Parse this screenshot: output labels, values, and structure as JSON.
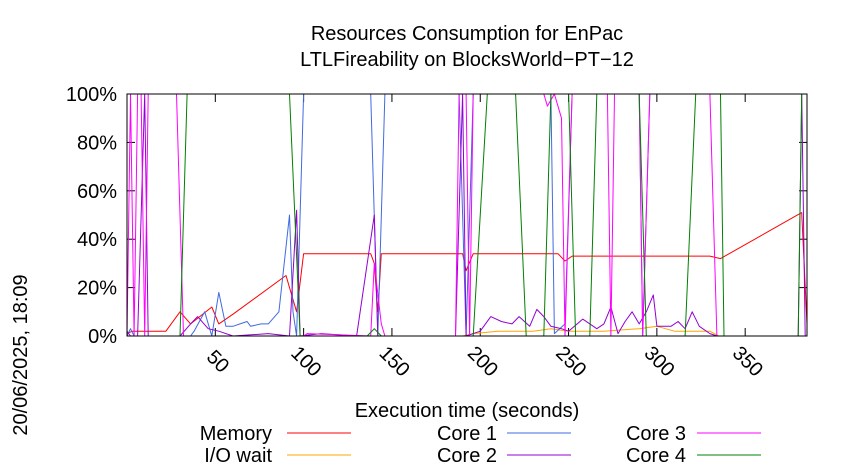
{
  "chart_data": {
    "type": "line",
    "title": "Resources Consumption for EnPac",
    "subtitle": "LTLFireability on BlocksWorld−PT−12",
    "xlabel": "Execution time (seconds)",
    "ylabel": "",
    "side_label": "20/06/2025, 18:09",
    "xlim": [
      0,
      385
    ],
    "ylim": [
      0,
      100
    ],
    "x_ticks": [
      50,
      100,
      150,
      200,
      250,
      300,
      350
    ],
    "y_ticks": [
      0,
      20,
      40,
      60,
      80,
      100
    ],
    "y_tick_labels": [
      "0%",
      "20%",
      "40%",
      "60%",
      "80%",
      "100%"
    ],
    "grid": false,
    "legend_position": "bottom",
    "series": [
      {
        "name": "Memory",
        "color": "#ff0000",
        "points": [
          [
            0,
            1
          ],
          [
            3,
            2
          ],
          [
            22,
            2
          ],
          [
            30,
            10
          ],
          [
            36,
            5
          ],
          [
            48,
            12
          ],
          [
            52,
            5
          ],
          [
            60,
            9
          ],
          [
            90,
            25
          ],
          [
            96,
            10
          ],
          [
            100,
            34
          ],
          [
            138,
            34
          ],
          [
            140,
            30
          ],
          [
            142,
            10
          ],
          [
            144,
            34
          ],
          [
            190,
            34
          ],
          [
            192,
            27
          ],
          [
            196,
            34
          ],
          [
            244,
            34
          ],
          [
            248,
            31
          ],
          [
            252,
            33
          ],
          [
            330,
            33
          ],
          [
            336,
            32
          ],
          [
            382,
            51
          ],
          [
            385,
            5
          ]
        ]
      },
      {
        "name": "I/O wait",
        "color": "#ffa500",
        "points": [
          [
            0,
            0
          ],
          [
            190,
            0
          ],
          [
            196,
            1
          ],
          [
            210,
            2
          ],
          [
            230,
            2
          ],
          [
            240,
            3
          ],
          [
            250,
            2
          ],
          [
            270,
            2
          ],
          [
            290,
            3
          ],
          [
            300,
            4
          ],
          [
            310,
            2
          ],
          [
            330,
            2
          ],
          [
            335,
            0
          ],
          [
            385,
            0
          ]
        ]
      },
      {
        "name": "Core 1",
        "color": "#4169e1",
        "points": [
          [
            0,
            0
          ],
          [
            2,
            3
          ],
          [
            4,
            0
          ],
          [
            36,
            0
          ],
          [
            38,
            2
          ],
          [
            44,
            10
          ],
          [
            48,
            0
          ],
          [
            52,
            18
          ],
          [
            56,
            4
          ],
          [
            60,
            4
          ],
          [
            64,
            5
          ],
          [
            68,
            6
          ],
          [
            70,
            4
          ],
          [
            76,
            5
          ],
          [
            80,
            5
          ],
          [
            86,
            10
          ],
          [
            92,
            50
          ],
          [
            94,
            10
          ],
          [
            96,
            0
          ],
          [
            100,
            100
          ],
          [
            138,
            100
          ],
          [
            142,
            0
          ],
          [
            146,
            100
          ],
          [
            188,
            100
          ],
          [
            192,
            0
          ],
          [
            196,
            100
          ],
          [
            240,
            100
          ],
          [
            242,
            1
          ],
          [
            248,
            5
          ],
          [
            252,
            100
          ],
          [
            290,
            100
          ],
          [
            292,
            0
          ],
          [
            296,
            100
          ],
          [
            385,
            100
          ]
        ]
      },
      {
        "name": "Core 2",
        "color": "#9400d3",
        "points": [
          [
            0,
            2
          ],
          [
            2,
            0
          ],
          [
            6,
            0
          ],
          [
            10,
            100
          ],
          [
            12,
            0
          ],
          [
            14,
            0
          ],
          [
            18,
            0
          ],
          [
            30,
            0
          ],
          [
            36,
            5
          ],
          [
            40,
            8
          ],
          [
            46,
            3
          ],
          [
            52,
            2
          ],
          [
            60,
            0
          ],
          [
            80,
            1
          ],
          [
            92,
            0
          ],
          [
            96,
            52
          ],
          [
            98,
            0
          ],
          [
            110,
            1
          ],
          [
            130,
            0
          ],
          [
            140,
            50
          ],
          [
            142,
            0
          ],
          [
            186,
            0
          ],
          [
            190,
            100
          ],
          [
            192,
            0
          ],
          [
            200,
            2
          ],
          [
            206,
            8
          ],
          [
            212,
            6
          ],
          [
            218,
            5
          ],
          [
            222,
            8
          ],
          [
            228,
            4
          ],
          [
            232,
            11
          ],
          [
            236,
            8
          ],
          [
            240,
            4
          ],
          [
            246,
            3
          ],
          [
            250,
            2
          ],
          [
            258,
            7
          ],
          [
            266,
            3
          ],
          [
            270,
            5
          ],
          [
            274,
            12
          ],
          [
            278,
            1
          ],
          [
            282,
            6
          ],
          [
            286,
            10
          ],
          [
            290,
            5
          ],
          [
            294,
            10
          ],
          [
            298,
            17
          ],
          [
            300,
            4
          ],
          [
            308,
            4
          ],
          [
            312,
            6
          ],
          [
            316,
            3
          ],
          [
            320,
            10
          ],
          [
            324,
            4
          ],
          [
            330,
            1
          ],
          [
            334,
            0
          ],
          [
            380,
            0
          ],
          [
            382,
            100
          ],
          [
            384,
            0
          ]
        ]
      },
      {
        "name": "Core 3",
        "color": "#ff00ff",
        "points": [
          [
            0,
            0
          ],
          [
            2,
            100
          ],
          [
            4,
            0
          ],
          [
            6,
            100
          ],
          [
            8,
            100
          ],
          [
            10,
            0
          ],
          [
            12,
            100
          ],
          [
            28,
            100
          ],
          [
            32,
            0
          ],
          [
            100,
            0
          ],
          [
            102,
            1
          ],
          [
            138,
            0
          ],
          [
            140,
            30
          ],
          [
            144,
            5
          ],
          [
            146,
            0
          ],
          [
            186,
            0
          ],
          [
            188,
            100
          ],
          [
            192,
            100
          ],
          [
            194,
            0
          ],
          [
            196,
            100
          ],
          [
            236,
            100
          ],
          [
            238,
            95
          ],
          [
            242,
            100
          ],
          [
            246,
            90
          ],
          [
            248,
            0
          ],
          [
            252,
            100
          ],
          [
            272,
            100
          ],
          [
            274,
            0
          ],
          [
            276,
            100
          ],
          [
            290,
            100
          ],
          [
            292,
            0
          ],
          [
            296,
            100
          ],
          [
            330,
            100
          ],
          [
            334,
            0
          ],
          [
            385,
            0
          ]
        ]
      },
      {
        "name": "Core 4",
        "color": "#008000",
        "points": [
          [
            0,
            0
          ],
          [
            30,
            0
          ],
          [
            34,
            100
          ],
          [
            92,
            100
          ],
          [
            98,
            0
          ],
          [
            136,
            0
          ],
          [
            140,
            3
          ],
          [
            144,
            0
          ],
          [
            196,
            0
          ],
          [
            204,
            100
          ],
          [
            220,
            100
          ],
          [
            226,
            0
          ],
          [
            236,
            0
          ],
          [
            240,
            100
          ],
          [
            250,
            100
          ],
          [
            254,
            0
          ],
          [
            262,
            0
          ],
          [
            266,
            100
          ],
          [
            290,
            100
          ],
          [
            294,
            0
          ],
          [
            316,
            0
          ],
          [
            322,
            100
          ],
          [
            336,
            100
          ],
          [
            338,
            0
          ],
          [
            380,
            0
          ],
          [
            382,
            100
          ],
          [
            385,
            100
          ]
        ]
      }
    ]
  }
}
